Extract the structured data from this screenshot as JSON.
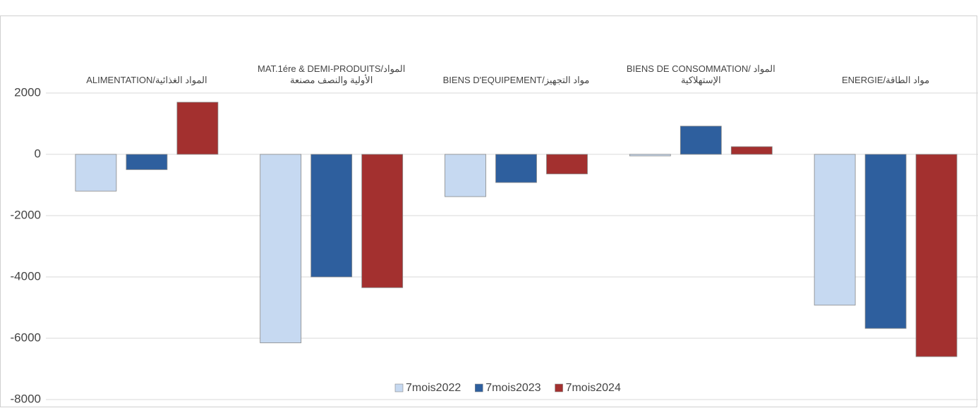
{
  "chart_data": {
    "type": "bar",
    "categories": [
      "ALIMENTATION/المواد الغذائية",
      "MAT.1ére & DEMI-PRODUITS/المواد الأولية والنصف مصنعة",
      "BIENS D'EQUIPEMENT/مواد التجهيز",
      "BIENS DE CONSOMMATION/ المواد الإستهلاكية",
      "ENERGIE/مواد الطاقة"
    ],
    "series": [
      {
        "name": "7mois2022",
        "color": "#c6d9f1",
        "values": [
          -1200,
          -6150,
          -1380,
          -50,
          -4920
        ]
      },
      {
        "name": "7mois2023",
        "color": "#2e5f9e",
        "values": [
          -500,
          -4000,
          -920,
          920,
          -5680
        ]
      },
      {
        "name": "7mois2024",
        "color": "#a3302f",
        "values": [
          1700,
          -4350,
          -640,
          250,
          -6600
        ]
      }
    ],
    "ylim": [
      -8000,
      4000
    ],
    "yticks": [
      -8000,
      -6000,
      -4000,
      -2000,
      0,
      2000
    ],
    "grid": true,
    "legend": "bottom"
  }
}
